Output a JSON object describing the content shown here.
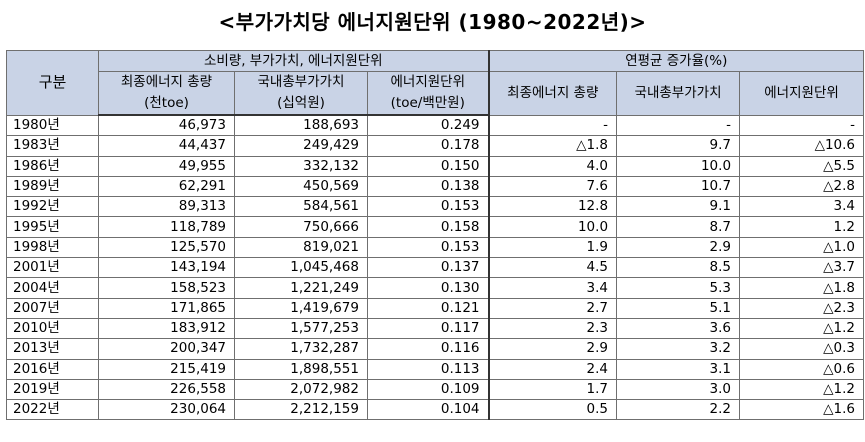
{
  "title": "<부가가치당 에너지원단위 (1980~2022년)>",
  "header": {
    "row_label": "구분",
    "group1": "소비량, 부가가치, 에너지원단위",
    "group2": "연평균 증가율(%)",
    "col1_line1": "최종에너지 총량",
    "col1_line2": "(천toe)",
    "col2_line1": "국내총부가가치",
    "col2_line2": "(십억원)",
    "col3_line1": "에너지원단위",
    "col3_line2": "(toe/백만원)",
    "col4": "최종에너지 총량",
    "col5": "국내총부가가치",
    "col6": "에너지원단위"
  },
  "rows": [
    [
      "1980년",
      "46,973",
      "188,693",
      "0.249",
      "-",
      "-",
      "-"
    ],
    [
      "1983년",
      "44,437",
      "249,429",
      "0.178",
      "△1.8",
      "9.7",
      "△10.6"
    ],
    [
      "1986년",
      "49,955",
      "332,132",
      "0.150",
      "4.0",
      "10.0",
      "△5.5"
    ],
    [
      "1989년",
      "62,291",
      "450,569",
      "0.138",
      "7.6",
      "10.7",
      "△2.8"
    ],
    [
      "1992년",
      "89,313",
      "584,561",
      "0.153",
      "12.8",
      "9.1",
      "3.4"
    ],
    [
      "1995년",
      "118,789",
      "750,666",
      "0.158",
      "10.0",
      "8.7",
      "1.2"
    ],
    [
      "1998년",
      "125,570",
      "819,021",
      "0.153",
      "1.9",
      "2.9",
      "△1.0"
    ],
    [
      "2001년",
      "143,194",
      "1,045,468",
      "0.137",
      "4.5",
      "8.5",
      "△3.7"
    ],
    [
      "2004년",
      "158,523",
      "1,221,249",
      "0.130",
      "3.4",
      "5.3",
      "△1.8"
    ],
    [
      "2007년",
      "171,865",
      "1,419,679",
      "0.121",
      "2.7",
      "5.1",
      "△2.3"
    ],
    [
      "2010년",
      "183,912",
      "1,577,253",
      "0.117",
      "2.3",
      "3.6",
      "△1.2"
    ],
    [
      "2013년",
      "200,347",
      "1,732,287",
      "0.116",
      "2.9",
      "3.2",
      "△0.3"
    ],
    [
      "2016년",
      "215,419",
      "1,898,551",
      "0.113",
      "2.4",
      "3.1",
      "△0.6"
    ],
    [
      "2019년",
      "226,558",
      "2,072,982",
      "0.109",
      "1.7",
      "3.0",
      "△1.2"
    ],
    [
      "2022년",
      "230,064",
      "2,212,159",
      "0.104",
      "0.5",
      "2.2",
      "△1.6"
    ]
  ]
}
